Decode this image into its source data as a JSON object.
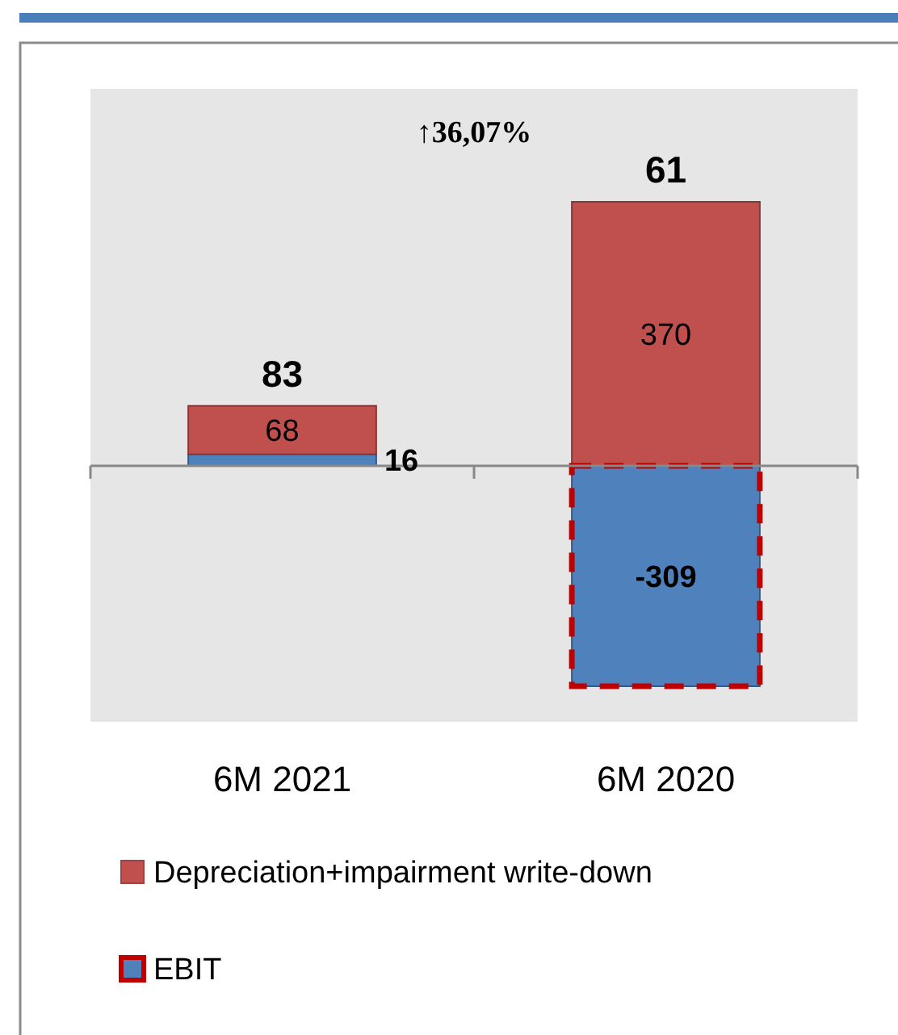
{
  "chart_data": {
    "type": "bar",
    "stacked": true,
    "categories": [
      "6M 2021",
      "6M 2020"
    ],
    "series": [
      {
        "name": "EBIT",
        "color": "#4f81bd",
        "values": [
          16,
          -309
        ]
      },
      {
        "name": "Depreciation+impairment write-down",
        "color": "#c0504d",
        "values": [
          68,
          370
        ]
      }
    ],
    "data_labels": true,
    "totals": [
      "83",
      "61"
    ],
    "annotations": [
      "↑36,07%"
    ],
    "legend": "bottom"
  }
}
